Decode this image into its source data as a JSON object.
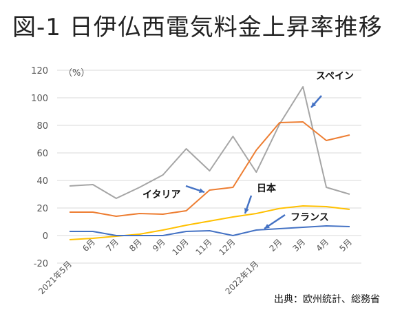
{
  "title": "図-1 日伊仏西電気料金上昇率推移",
  "source": "出典：欧州統計、総務省",
  "chart_data": {
    "type": "line",
    "title": "図-1 日伊仏西電気料金上昇率推移",
    "ylabel": "（%）",
    "xlabel": "",
    "ylim": [
      -20,
      120
    ],
    "yticks": [
      -20,
      0,
      20,
      40,
      60,
      80,
      100,
      120
    ],
    "grid": true,
    "categories": [
      "2021年5月",
      "6月",
      "7月",
      "8月",
      "9月",
      "10月",
      "11月",
      "12月",
      "2022年1月",
      "2月",
      "3月",
      "4月",
      "5月"
    ],
    "series": [
      {
        "name": "スペイン",
        "color": "#a5a5a5",
        "values": [
          36,
          37,
          27,
          35,
          44,
          63,
          47,
          72,
          46,
          81,
          108,
          35,
          30
        ]
      },
      {
        "name": "イタリア",
        "color": "#ed7d31",
        "values": [
          17,
          17,
          14,
          16,
          15.5,
          18,
          33,
          35,
          62,
          82,
          82.5,
          69,
          73
        ]
      },
      {
        "name": "日本",
        "color": "#ffc000",
        "values": [
          -3,
          -2,
          -0.5,
          1,
          4,
          7.5,
          10.5,
          13.5,
          16,
          19.7,
          21.5,
          21,
          19
        ]
      },
      {
        "name": "フランス",
        "color": "#4472c4",
        "values": [
          3,
          3,
          0,
          0,
          0,
          3,
          3.5,
          0,
          4,
          5,
          6,
          7,
          6.5
        ]
      }
    ],
    "annotations": [
      "スペイン",
      "イタリア",
      "日本",
      "フランス"
    ]
  }
}
